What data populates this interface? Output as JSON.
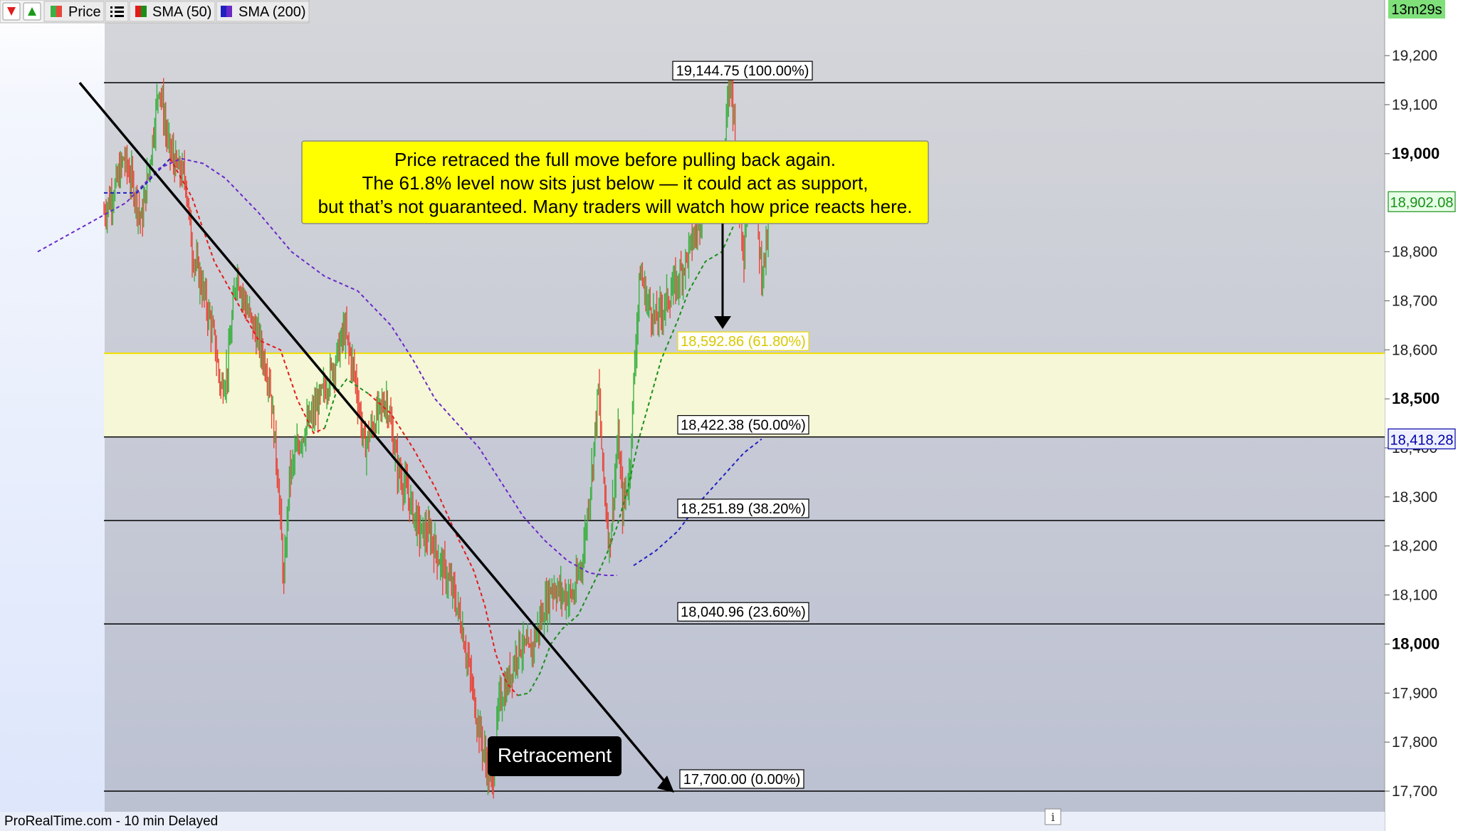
{
  "toolbar": {
    "price_label": "Price",
    "sma50_label": "SMA (50)",
    "sma200_label": "SMA (200)"
  },
  "countdown": "13m29s",
  "footer": {
    "source": "ProRealTime.com - 10 min Delayed",
    "info_glyph": "i"
  },
  "annotation": {
    "lines": [
      "Price retraced the full move before pulling back again.",
      "The 61.8% level now sits just below — it could act as support,",
      "but that’s not guaranteed. Many traders will watch how price reacts here."
    ]
  },
  "retracement_label": "Retracement",
  "colors": {
    "up": "#3cb043",
    "down": "#e8473a",
    "sma50": "#1a8f1a",
    "sma50_above": "#e21b1b",
    "sma200": "#6a2ac8",
    "sma200_recent": "#2020c0",
    "zone": "#f6f7d6",
    "annotation_bg": "#ffff00",
    "current_price": "#1a8f1a",
    "sma200_value": "#0000aa"
  },
  "chart_data": {
    "type": "candlestick",
    "ylim": [
      17680,
      19250
    ],
    "yticks": [
      {
        "value": 17700,
        "label": "17,700",
        "bold": false
      },
      {
        "value": 17800,
        "label": "17,800",
        "bold": false
      },
      {
        "value": 17900,
        "label": "17,900",
        "bold": false
      },
      {
        "value": 18000,
        "label": "18,000",
        "bold": true
      },
      {
        "value": 18100,
        "label": "18,100",
        "bold": false
      },
      {
        "value": 18200,
        "label": "18,200",
        "bold": false
      },
      {
        "value": 18300,
        "label": "18,300",
        "bold": false
      },
      {
        "value": 18400,
        "label": "18,400",
        "bold": false
      },
      {
        "value": 18500,
        "label": "18,500",
        "bold": true
      },
      {
        "value": 18600,
        "label": "18,600",
        "bold": false
      },
      {
        "value": 18700,
        "label": "18,700",
        "bold": false
      },
      {
        "value": 18800,
        "label": "18,800",
        "bold": false
      },
      {
        "value": 19000,
        "label": "19,000",
        "bold": true
      },
      {
        "value": 19100,
        "label": "19,100",
        "bold": false
      },
      {
        "value": 19200,
        "label": "19,200",
        "bold": false
      }
    ],
    "fib_levels": [
      {
        "value": 19144.75,
        "label": "19,144.75 (100.00%)"
      },
      {
        "value": 18592.86,
        "label": "18,592.86 (61.80%)",
        "highlight": true
      },
      {
        "value": 18422.38,
        "label": "18,422.38 (50.00%)"
      },
      {
        "value": 18251.89,
        "label": "18,251.89 (38.20%)"
      },
      {
        "value": 18040.96,
        "label": "18,040.96 (23.60%)"
      },
      {
        "value": 17700.0,
        "label": "17,700.00 (0.00%)"
      }
    ],
    "current_price": {
      "value": 18902.08,
      "label": "18,902.08"
    },
    "sma200_value": {
      "value": 18418.28,
      "label": "18,418.28"
    },
    "price_path": [
      [
        0,
        18880
      ],
      [
        10,
        18930
      ],
      [
        18,
        18990
      ],
      [
        26,
        18940
      ],
      [
        34,
        18860
      ],
      [
        42,
        18990
      ],
      [
        50,
        19144.75
      ],
      [
        58,
        19020
      ],
      [
        66,
        18970
      ],
      [
        74,
        18950
      ],
      [
        80,
        18800
      ],
      [
        90,
        18720
      ],
      [
        100,
        18620
      ],
      [
        106,
        18520
      ],
      [
        112,
        18560
      ],
      [
        120,
        18760
      ],
      [
        130,
        18680
      ],
      [
        140,
        18620
      ],
      [
        150,
        18540
      ],
      [
        158,
        18330
      ],
      [
        163,
        18120
      ],
      [
        168,
        18340
      ],
      [
        178,
        18420
      ],
      [
        190,
        18470
      ],
      [
        200,
        18520
      ],
      [
        210,
        18580
      ],
      [
        218,
        18640
      ],
      [
        228,
        18540
      ],
      [
        236,
        18400
      ],
      [
        246,
        18460
      ],
      [
        256,
        18500
      ],
      [
        266,
        18360
      ],
      [
        276,
        18300
      ],
      [
        286,
        18230
      ],
      [
        296,
        18220
      ],
      [
        306,
        18160
      ],
      [
        316,
        18110
      ],
      [
        324,
        18040
      ],
      [
        330,
        17960
      ],
      [
        338,
        17850
      ],
      [
        346,
        17760
      ],
      [
        352,
        17710
      ],
      [
        358,
        17880
      ],
      [
        366,
        17920
      ],
      [
        376,
        18000
      ],
      [
        386,
        17980
      ],
      [
        396,
        18050
      ],
      [
        406,
        18120
      ],
      [
        416,
        18100
      ],
      [
        426,
        18100
      ],
      [
        434,
        18180
      ],
      [
        442,
        18350
      ],
      [
        448,
        18520
      ],
      [
        452,
        18360
      ],
      [
        458,
        18200
      ],
      [
        466,
        18420
      ],
      [
        470,
        18280
      ],
      [
        476,
        18340
      ],
      [
        482,
        18620
      ],
      [
        486,
        18760
      ],
      [
        492,
        18700
      ],
      [
        500,
        18660
      ],
      [
        510,
        18700
      ],
      [
        520,
        18740
      ],
      [
        530,
        18800
      ],
      [
        540,
        18870
      ],
      [
        548,
        18960
      ],
      [
        554,
        18980
      ],
      [
        560,
        18890
      ],
      [
        564,
        19070
      ],
      [
        568,
        19160
      ],
      [
        572,
        19040
      ],
      [
        576,
        18900
      ],
      [
        580,
        18800
      ],
      [
        584,
        18960
      ],
      [
        590,
        18900
      ],
      [
        596,
        18760
      ],
      [
        600,
        18800
      ],
      [
        604,
        18900
      ]
    ],
    "sma50": [
      [
        0,
        18920
      ],
      [
        30,
        18920
      ],
      [
        60,
        18990
      ],
      [
        80,
        18910
      ],
      [
        100,
        18780
      ],
      [
        120,
        18700
      ],
      [
        140,
        18620
      ],
      [
        160,
        18600
      ],
      [
        175,
        18500
      ],
      [
        190,
        18430
      ],
      [
        200,
        18440
      ],
      [
        210,
        18510
      ],
      [
        220,
        18540
      ],
      [
        240,
        18510
      ],
      [
        260,
        18470
      ],
      [
        280,
        18400
      ],
      [
        300,
        18320
      ],
      [
        320,
        18220
      ],
      [
        335,
        18150
      ],
      [
        345,
        18080
      ],
      [
        355,
        17980
      ],
      [
        365,
        17920
      ],
      [
        375,
        17895
      ],
      [
        385,
        17900
      ],
      [
        395,
        17940
      ],
      [
        405,
        18000
      ],
      [
        415,
        18030
      ],
      [
        430,
        18060
      ],
      [
        445,
        18130
      ],
      [
        455,
        18180
      ],
      [
        465,
        18240
      ],
      [
        475,
        18320
      ],
      [
        485,
        18420
      ],
      [
        495,
        18500
      ],
      [
        505,
        18580
      ],
      [
        520,
        18660
      ],
      [
        530,
        18720
      ],
      [
        545,
        18780
      ],
      [
        560,
        18800
      ],
      [
        572,
        18860
      ],
      [
        584,
        18890
      ],
      [
        596,
        18902
      ]
    ],
    "sma200": [
      [
        -60,
        18800
      ],
      [
        -20,
        18850
      ],
      [
        20,
        18900
      ],
      [
        50,
        18970
      ],
      [
        70,
        18990
      ],
      [
        90,
        18980
      ],
      [
        110,
        18950
      ],
      [
        140,
        18880
      ],
      [
        170,
        18800
      ],
      [
        200,
        18750
      ],
      [
        230,
        18720
      ],
      [
        260,
        18650
      ],
      [
        280,
        18580
      ],
      [
        300,
        18500
      ],
      [
        320,
        18450
      ],
      [
        340,
        18400
      ],
      [
        360,
        18330
      ],
      [
        380,
        18260
      ],
      [
        400,
        18210
      ],
      [
        420,
        18170
      ],
      [
        440,
        18145
      ],
      [
        455,
        18140
      ],
      [
        465,
        18140
      ],
      [
        480,
        18160
      ],
      [
        500,
        18190
      ],
      [
        520,
        18230
      ],
      [
        540,
        18290
      ],
      [
        560,
        18340
      ],
      [
        580,
        18390
      ],
      [
        596,
        18418
      ]
    ]
  }
}
